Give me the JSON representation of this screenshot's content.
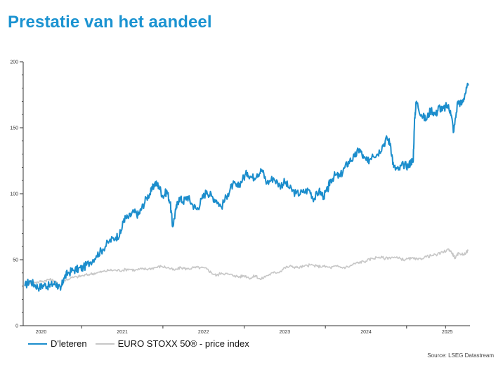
{
  "page": {
    "title": "Prestatie van het aandeel",
    "source": "Source: LSEG Datastream"
  },
  "colors": {
    "title": "#1b93d1",
    "dieteren": "#1b8dcc",
    "eurostoxx": "#c7c7c7",
    "axis": "#333333"
  },
  "chart_data": {
    "type": "line",
    "title": "",
    "xlabel": "",
    "ylabel": "",
    "ylim": [
      0,
      200
    ],
    "xlim": [
      2019.78,
      2025.28
    ],
    "yticks": [
      0,
      50,
      100,
      150,
      200
    ],
    "xtick_labels": [
      {
        "label": "2020",
        "x": 2020.0
      },
      {
        "label": "2021",
        "x": 2021.0
      },
      {
        "label": "2022",
        "x": 2022.0
      },
      {
        "label": "2023",
        "x": 2023.0
      },
      {
        "label": "2024",
        "x": 2024.0
      },
      {
        "label": "2025",
        "x": 2025.0
      }
    ],
    "year_boundaries": [
      2020.5,
      2021.5,
      2022.5,
      2023.5,
      2024.5,
      2024.98
    ],
    "legend_position": "bottom-left",
    "grid": false,
    "series": [
      {
        "name": "D'leteren",
        "color": "#1b8dcc",
        "points": [
          [
            2019.8,
            30
          ],
          [
            2019.86,
            34
          ],
          [
            2019.92,
            31
          ],
          [
            2019.98,
            29
          ],
          [
            2020.04,
            31
          ],
          [
            2020.1,
            30
          ],
          [
            2020.16,
            32
          ],
          [
            2020.2,
            31
          ],
          [
            2020.24,
            27
          ],
          [
            2020.28,
            36
          ],
          [
            2020.33,
            40
          ],
          [
            2020.4,
            42
          ],
          [
            2020.46,
            43
          ],
          [
            2020.52,
            44
          ],
          [
            2020.6,
            48
          ],
          [
            2020.68,
            53
          ],
          [
            2020.76,
            58
          ],
          [
            2020.84,
            64
          ],
          [
            2020.92,
            67
          ],
          [
            2020.98,
            70
          ],
          [
            2021.02,
            81
          ],
          [
            2021.08,
            82
          ],
          [
            2021.14,
            86
          ],
          [
            2021.2,
            84
          ],
          [
            2021.24,
            89
          ],
          [
            2021.3,
            97
          ],
          [
            2021.36,
            102
          ],
          [
            2021.4,
            108
          ],
          [
            2021.45,
            106
          ],
          [
            2021.5,
            98
          ],
          [
            2021.55,
            102
          ],
          [
            2021.59,
            93
          ],
          [
            2021.62,
            75
          ],
          [
            2021.66,
            88
          ],
          [
            2021.7,
            97
          ],
          [
            2021.75,
            94
          ],
          [
            2021.8,
            98
          ],
          [
            2021.86,
            92
          ],
          [
            2021.92,
            88
          ],
          [
            2021.98,
            96
          ],
          [
            2022.04,
            102
          ],
          [
            2022.1,
            98
          ],
          [
            2022.16,
            95
          ],
          [
            2022.22,
            90
          ],
          [
            2022.3,
            100
          ],
          [
            2022.36,
            107
          ],
          [
            2022.42,
            105
          ],
          [
            2022.48,
            111
          ],
          [
            2022.54,
            116
          ],
          [
            2022.6,
            112
          ],
          [
            2022.66,
            115
          ],
          [
            2022.72,
            118
          ],
          [
            2022.78,
            108
          ],
          [
            2022.86,
            112
          ],
          [
            2022.94,
            106
          ],
          [
            2023.0,
            109
          ],
          [
            2023.06,
            104
          ],
          [
            2023.14,
            100
          ],
          [
            2023.22,
            101
          ],
          [
            2023.3,
            103
          ],
          [
            2023.36,
            96
          ],
          [
            2023.42,
            102
          ],
          [
            2023.48,
            98
          ],
          [
            2023.53,
            103
          ],
          [
            2023.56,
            110
          ],
          [
            2023.62,
            114
          ],
          [
            2023.68,
            113
          ],
          [
            2023.74,
            120
          ],
          [
            2023.8,
            125
          ],
          [
            2023.86,
            128
          ],
          [
            2023.92,
            134
          ],
          [
            2023.97,
            127
          ],
          [
            2024.02,
            124
          ],
          [
            2024.08,
            130
          ],
          [
            2024.14,
            130
          ],
          [
            2024.2,
            136
          ],
          [
            2024.26,
            142
          ],
          [
            2024.3,
            138
          ],
          [
            2024.34,
            120
          ],
          [
            2024.4,
            118
          ],
          [
            2024.46,
            122
          ],
          [
            2024.52,
            121
          ],
          [
            2024.56,
            125
          ],
          [
            2024.58,
            124
          ],
          [
            2024.6,
            158
          ],
          [
            2024.62,
            170
          ],
          [
            2024.68,
            160
          ],
          [
            2024.74,
            156
          ],
          [
            2024.8,
            164
          ],
          [
            2024.86,
            160
          ],
          [
            2024.9,
            166
          ],
          [
            2024.94,
            163
          ],
          [
            2025.0,
            167
          ],
          [
            2025.04,
            163
          ],
          [
            2025.08,
            147
          ],
          [
            2025.13,
            170
          ],
          [
            2025.18,
            168
          ],
          [
            2025.22,
            176
          ],
          [
            2025.26,
            182
          ]
        ]
      },
      {
        "name": "EURO STOXX 50® - price index",
        "color": "#c7c7c7",
        "points": [
          [
            2019.8,
            31
          ],
          [
            2019.88,
            33
          ],
          [
            2019.96,
            33
          ],
          [
            2020.04,
            34
          ],
          [
            2020.1,
            35
          ],
          [
            2020.16,
            34
          ],
          [
            2020.2,
            32
          ],
          [
            2020.24,
            29
          ],
          [
            2020.28,
            34
          ],
          [
            2020.36,
            36
          ],
          [
            2020.44,
            37
          ],
          [
            2020.52,
            38
          ],
          [
            2020.6,
            39
          ],
          [
            2020.68,
            40
          ],
          [
            2020.76,
            41
          ],
          [
            2020.84,
            42
          ],
          [
            2020.92,
            42
          ],
          [
            2021.0,
            42
          ],
          [
            2021.08,
            43
          ],
          [
            2021.16,
            42
          ],
          [
            2021.24,
            43
          ],
          [
            2021.32,
            43
          ],
          [
            2021.4,
            44
          ],
          [
            2021.48,
            45
          ],
          [
            2021.56,
            44
          ],
          [
            2021.64,
            42
          ],
          [
            2021.72,
            44
          ],
          [
            2021.8,
            43
          ],
          [
            2021.88,
            44
          ],
          [
            2021.96,
            44
          ],
          [
            2022.04,
            43
          ],
          [
            2022.1,
            40
          ],
          [
            2022.16,
            38
          ],
          [
            2022.22,
            40
          ],
          [
            2022.3,
            39
          ],
          [
            2022.38,
            38
          ],
          [
            2022.44,
            37
          ],
          [
            2022.5,
            38
          ],
          [
            2022.58,
            36
          ],
          [
            2022.64,
            38
          ],
          [
            2022.7,
            35
          ],
          [
            2022.78,
            38
          ],
          [
            2022.86,
            40
          ],
          [
            2022.94,
            41
          ],
          [
            2023.0,
            44
          ],
          [
            2023.08,
            45
          ],
          [
            2023.16,
            44
          ],
          [
            2023.24,
            45
          ],
          [
            2023.32,
            46
          ],
          [
            2023.4,
            45
          ],
          [
            2023.48,
            45
          ],
          [
            2023.56,
            44
          ],
          [
            2023.64,
            45
          ],
          [
            2023.72,
            44
          ],
          [
            2023.8,
            45
          ],
          [
            2023.86,
            47
          ],
          [
            2023.92,
            48
          ],
          [
            2024.0,
            49
          ],
          [
            2024.08,
            51
          ],
          [
            2024.16,
            52
          ],
          [
            2024.24,
            51
          ],
          [
            2024.32,
            52
          ],
          [
            2024.4,
            51
          ],
          [
            2024.48,
            50
          ],
          [
            2024.56,
            51
          ],
          [
            2024.64,
            50
          ],
          [
            2024.72,
            52
          ],
          [
            2024.8,
            53
          ],
          [
            2024.88,
            54
          ],
          [
            2024.96,
            56
          ],
          [
            2025.02,
            58
          ],
          [
            2025.06,
            55
          ],
          [
            2025.1,
            51
          ],
          [
            2025.14,
            55
          ],
          [
            2025.2,
            54
          ],
          [
            2025.26,
            57
          ]
        ]
      }
    ]
  }
}
